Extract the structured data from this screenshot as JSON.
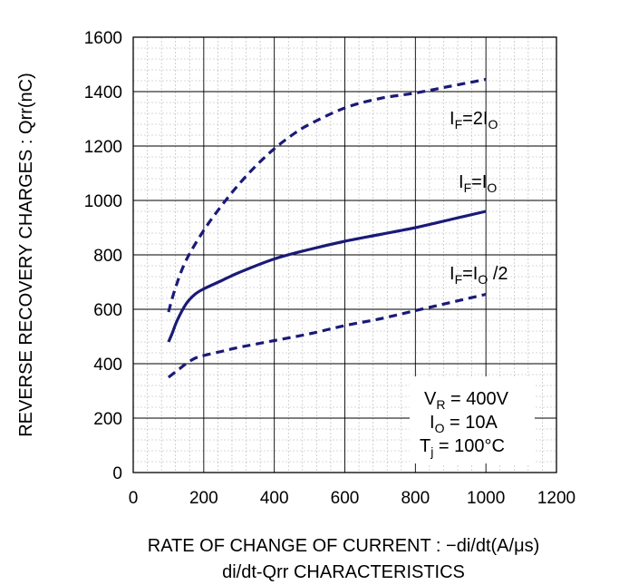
{
  "chart_data": {
    "type": "line",
    "title": "di/dt-Qrr CHARACTERISTICS",
    "xlabel": "RATE OF CHANGE OF CURRENT : −di/dt(A/μs)",
    "ylabel": "REVERSE RECOVERY  CHARGES : Qrr(nC)",
    "xlim": [
      0,
      1200
    ],
    "ylim": [
      0,
      1600
    ],
    "xticks": [
      0,
      200,
      400,
      600,
      800,
      1000,
      1200
    ],
    "yticks": [
      0,
      200,
      400,
      600,
      800,
      1000,
      1200,
      1400,
      1600
    ],
    "grid": true,
    "series": [
      {
        "name": "IF=2IO",
        "label": {
          "main": "I",
          "sub1": "F",
          "mid": "=2I",
          "sub2": "O",
          "tail": ""
        },
        "style": "dashed",
        "x": [
          100,
          120,
          150,
          200,
          250,
          300,
          350,
          400,
          450,
          500,
          600,
          700,
          800,
          900,
          1000
        ],
        "y": [
          590,
          680,
          780,
          890,
          980,
          1060,
          1130,
          1190,
          1240,
          1280,
          1340,
          1375,
          1395,
          1420,
          1445
        ]
      },
      {
        "name": "IF=IO",
        "label": {
          "main": "I",
          "sub1": "F",
          "mid": "=I",
          "sub2": "O",
          "tail": ""
        },
        "style": "solid",
        "x": [
          100,
          110,
          125,
          150,
          175,
          200,
          250,
          300,
          400,
          500,
          600,
          700,
          800,
          900,
          1000
        ],
        "y": [
          480,
          510,
          560,
          620,
          655,
          675,
          705,
          735,
          785,
          820,
          850,
          875,
          900,
          930,
          960
        ]
      },
      {
        "name": "IF=IO /2",
        "label": {
          "main": "I",
          "sub1": "F",
          "mid": "=I",
          "sub2": "O",
          "tail": " /2"
        },
        "style": "dashed",
        "x": [
          100,
          125,
          150,
          175,
          200,
          250,
          300,
          400,
          500,
          600,
          700,
          800,
          900,
          1000
        ],
        "y": [
          350,
          375,
          400,
          420,
          430,
          445,
          460,
          485,
          510,
          540,
          565,
          595,
          625,
          655
        ]
      }
    ],
    "conditions": [
      {
        "main": "V",
        "sub": "R",
        "rest": " = 400V"
      },
      {
        "main": "I",
        "sub": "O",
        "rest": " = 10A"
      },
      {
        "main": "T",
        "sub": "j",
        "rest": " = 100°C"
      }
    ],
    "colors": {
      "curve": "#1a1a78",
      "grid": "#b4b4b4",
      "axis": "#000000",
      "background": "#ffffff"
    }
  }
}
